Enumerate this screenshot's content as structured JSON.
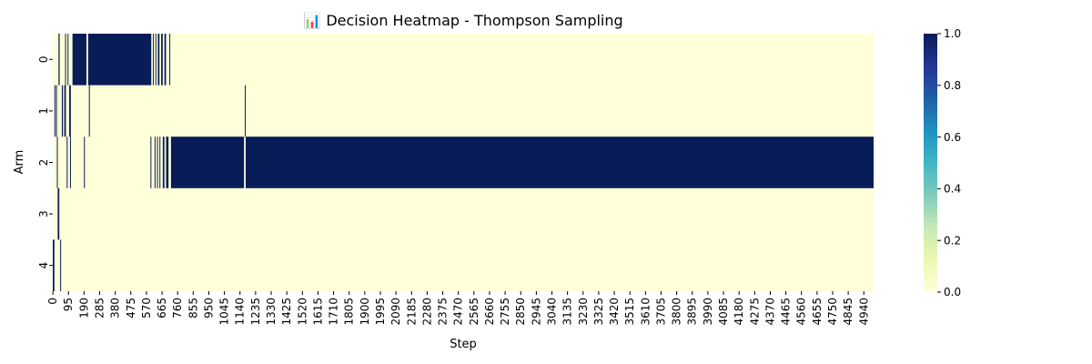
{
  "chart_data": {
    "type": "heatmap",
    "title": "📊 Decision Heatmap - Thompson Sampling",
    "xlabel": "Step",
    "ylabel": "Arm",
    "n_steps": 5000,
    "arms": [
      "0",
      "1",
      "2",
      "3",
      "4"
    ],
    "x_tick_step": 95,
    "x_tick_labels": [
      "0",
      "95",
      "190",
      "285",
      "380",
      "475",
      "570",
      "665",
      "760",
      "855",
      "950",
      "1045",
      "1140",
      "1235",
      "1330",
      "1425",
      "1520",
      "1615",
      "1710",
      "1805",
      "1900",
      "1995",
      "2090",
      "2185",
      "2280",
      "2375",
      "2470",
      "2565",
      "2660",
      "2755",
      "2850",
      "2945",
      "3040",
      "3135",
      "3230",
      "3325",
      "3420",
      "3515",
      "3610",
      "3705",
      "3800",
      "3895",
      "3990",
      "4085",
      "4180",
      "4275",
      "4370",
      "4465",
      "4560",
      "4655",
      "4750",
      "4845",
      "4940"
    ],
    "value_range": [
      0,
      1
    ],
    "colormap": "YlGnBu",
    "colors": {
      "low": "#ffffd9",
      "high": "#081d58"
    },
    "colorbar_ticks": [
      "0.0",
      "0.2",
      "0.4",
      "0.6",
      "0.8",
      "1.0"
    ],
    "selections": {
      "0": [
        [
          35,
          42
        ],
        [
          75,
          80
        ],
        [
          90,
          95
        ],
        [
          120,
          205
        ],
        [
          215,
          600
        ],
        [
          610,
          615
        ],
        [
          625,
          630
        ],
        [
          640,
          650
        ],
        [
          660,
          670
        ],
        [
          680,
          690
        ],
        [
          710,
          715
        ]
      ],
      "1": [
        [
          10,
          15
        ],
        [
          20,
          25
        ],
        [
          55,
          62
        ],
        [
          70,
          80
        ],
        [
          100,
          110
        ],
        [
          220,
          225
        ],
        [
          1170,
          1175
        ]
      ],
      "2": [
        [
          25,
          30
        ],
        [
          85,
          90
        ],
        [
          105,
          110
        ],
        [
          190,
          195
        ],
        [
          595,
          600
        ],
        [
          620,
          625
        ],
        [
          635,
          640
        ],
        [
          650,
          655
        ],
        [
          670,
          680
        ],
        [
          690,
          705
        ],
        [
          720,
          1165
        ],
        [
          1175,
          5000
        ]
      ],
      "3": [
        [
          30,
          40
        ]
      ],
      "4": [
        [
          0,
          10
        ],
        [
          45,
          50
        ]
      ]
    }
  }
}
